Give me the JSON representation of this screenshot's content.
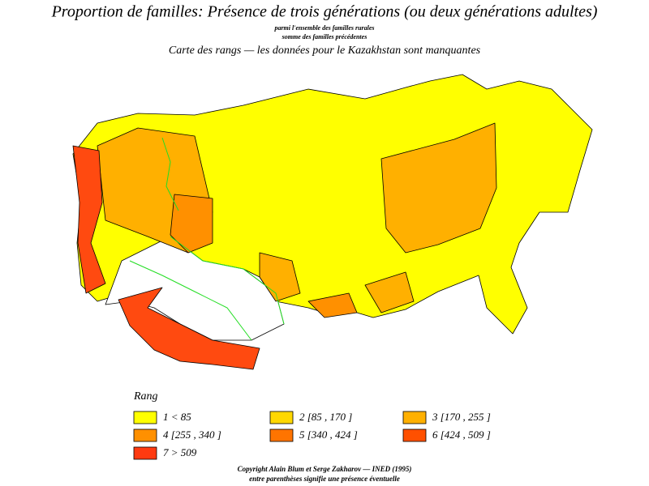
{
  "header": {
    "title": "Proportion de familles: Présence de trois générations (ou deux générations adultes)",
    "subtitle_1": "parmi l'ensemble des familles rurales",
    "subtitle_2": "somme des familles précédentes",
    "subtitle_3": "Carte des rangs — les données pour le Kazakhstan sont manquantes"
  },
  "legend": {
    "title": "Rang",
    "items": [
      {
        "label": "1  <  85",
        "color": "#ffff00"
      },
      {
        "label": "2  [85 ,  170 ]",
        "color": "#ffd800"
      },
      {
        "label": "3  [170 ,  255 ]",
        "color": "#ffb000"
      },
      {
        "label": "4  [255 ,  340 ]",
        "color": "#ff9000"
      },
      {
        "label": "5  [340 ,  424 ]",
        "color": "#ff7400"
      },
      {
        "label": "6  [424 ,  509 ]",
        "color": "#ff5000"
      },
      {
        "label": "7  >  509",
        "color": "#ff3a10"
      }
    ]
  },
  "footer": {
    "copyright": "Copyright Alain Blum et Serge Zakharov — INED (1995)",
    "note": "entre parenthèses signifie une présence éventuelle"
  }
}
